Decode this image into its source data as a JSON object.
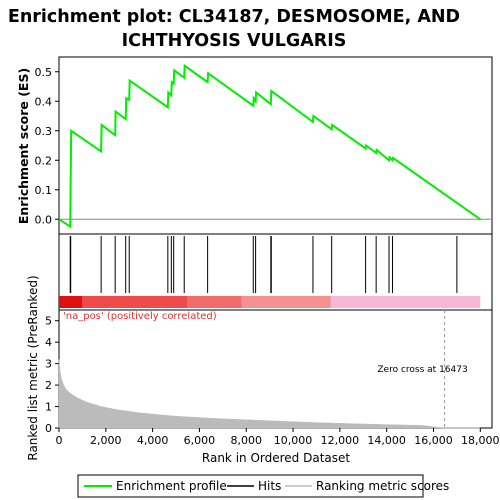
{
  "title_line1": "Enrichment plot: CL34187, DESMOSOME, AND",
  "title_line2": "ICHTHYOSIS VULGARIS",
  "chart_data": {
    "type": "line",
    "xlim": [
      0,
      18500
    ],
    "xticks": [
      "0",
      "2,000",
      "4,000",
      "6,000",
      "8,000",
      "10,000",
      "12,000",
      "14,000",
      "16,000",
      "18,000"
    ],
    "xtick_values": [
      0,
      2000,
      4000,
      6000,
      8000,
      10000,
      12000,
      14000,
      16000,
      18000
    ],
    "xlabel": "Rank in Ordered Dataset",
    "es_panel": {
      "ylabel": "Enrichment score (ES)",
      "ylim": [
        -0.05,
        0.55
      ],
      "yticks": [
        "0.0",
        "0.1",
        "0.2",
        "0.3",
        "0.4",
        "0.5"
      ],
      "ytick_values": [
        0,
        0.1,
        0.2,
        0.3,
        0.4,
        0.5
      ],
      "series": [
        {
          "name": "Enrichment profile",
          "color": "#00ee00",
          "x": [
            0,
            480,
            500,
            520,
            1800,
            1820,
            2400,
            2420,
            2850,
            2870,
            3000,
            3020,
            4650,
            4670,
            4800,
            4820,
            4900,
            4920,
            5350,
            5370,
            6350,
            6370,
            8300,
            8320,
            8400,
            8420,
            9050,
            9070,
            10850,
            10870,
            11650,
            11670,
            13100,
            13120,
            13550,
            13570,
            14100,
            14120,
            14250,
            14270,
            18000
          ],
          "y": [
            0.0,
            -0.025,
            0.14,
            0.3,
            0.23,
            0.32,
            0.285,
            0.365,
            0.34,
            0.41,
            0.405,
            0.47,
            0.38,
            0.43,
            0.42,
            0.465,
            0.46,
            0.505,
            0.48,
            0.52,
            0.465,
            0.495,
            0.385,
            0.41,
            0.4,
            0.43,
            0.39,
            0.435,
            0.33,
            0.35,
            0.305,
            0.32,
            0.24,
            0.25,
            0.225,
            0.235,
            0.2,
            0.21,
            0.2,
            0.208,
            0.0
          ]
        }
      ]
    },
    "hits_panel": {
      "series_name": "Hits",
      "hit_positions": [
        480,
        500,
        1800,
        2400,
        2850,
        3000,
        4650,
        4800,
        4900,
        5350,
        6350,
        8300,
        8400,
        9050,
        9070,
        10850,
        11650,
        13100,
        13550,
        14100,
        14250,
        17000
      ]
    },
    "rank_panel": {
      "ylabel": "Ranked list metric (PreRanked)",
      "ylim": [
        0,
        5.5
      ],
      "yticks": [
        "0",
        "1",
        "2",
        "3",
        "4",
        "5"
      ],
      "ytick_values": [
        0,
        1,
        2,
        3,
        4,
        5
      ],
      "series_name": "Ranking metric scores",
      "curve_x": [
        0,
        50,
        100,
        200,
        300,
        500,
        800,
        1200,
        1800,
        2500,
        3500,
        5000,
        6500,
        8000,
        9500,
        11000,
        12500,
        14000,
        15500,
        16473,
        18000
      ],
      "curve_y": [
        3.2,
        2.6,
        2.3,
        2.0,
        1.8,
        1.6,
        1.4,
        1.2,
        1.0,
        0.85,
        0.7,
        0.55,
        0.45,
        0.38,
        0.31,
        0.25,
        0.2,
        0.16,
        0.12,
        0.0,
        0.0
      ],
      "zero_cross": 16473,
      "zero_cross_label": "Zero cross at 16473",
      "positive_label": "'na_pos' (positively correlated)"
    },
    "legend": {
      "placement": "bottom",
      "items": [
        {
          "label": "Enrichment profile",
          "color": "#00ee00"
        },
        {
          "label": "Hits",
          "color": "#000000"
        },
        {
          "label": "Ranking metric scores",
          "color": "#bbbbbb"
        }
      ]
    }
  }
}
